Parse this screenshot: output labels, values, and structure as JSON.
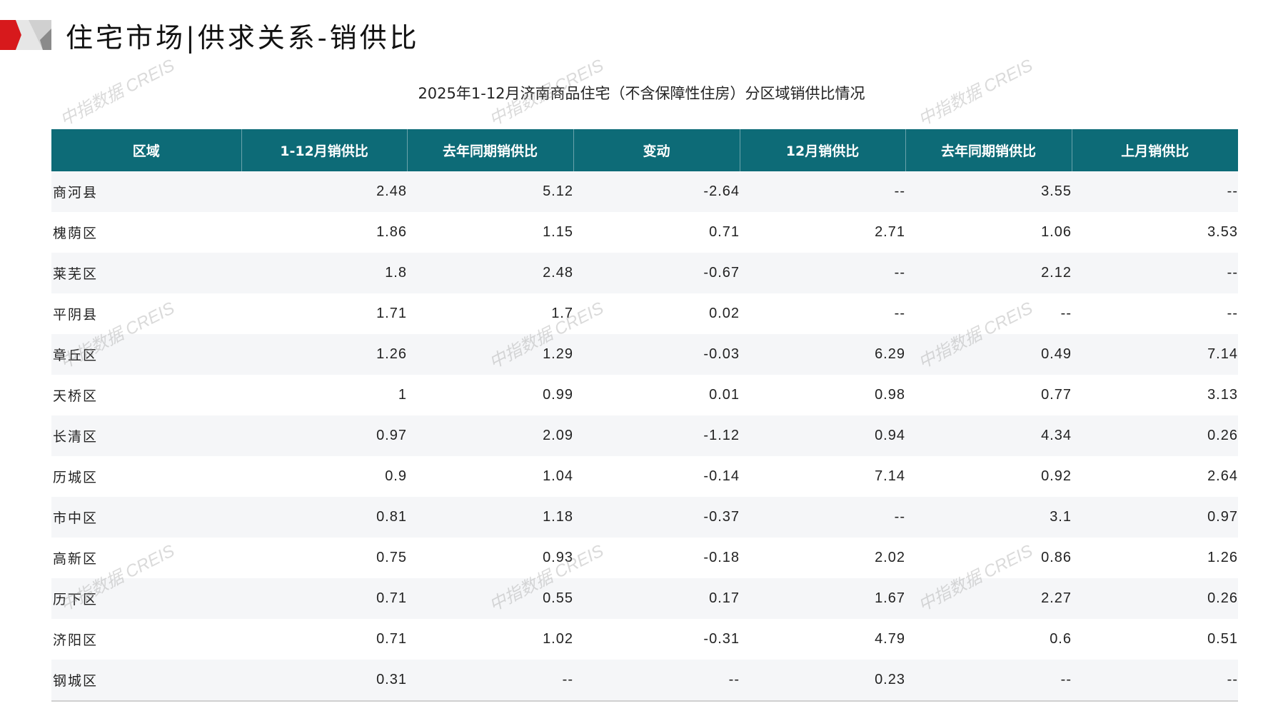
{
  "header": {
    "title": "住宅市场|供求关系-销供比",
    "subtitle": "2025年1-12月济南商品住宅（不含保障性住房）分区域销供比情况"
  },
  "watermark": "中指数据 CREIS",
  "colors": {
    "header_bg": "#0d6b77",
    "accent_red": "#d7191c",
    "row_alt": "#f5f6f8"
  },
  "table": {
    "columns": [
      "区域",
      "1-12月销供比",
      "去年同期销供比",
      "变动",
      "12月销供比",
      "去年同期销供比",
      "上月销供比"
    ],
    "rows": [
      [
        "商河县",
        "2.48",
        "5.12",
        "-2.64",
        "--",
        "3.55",
        "--"
      ],
      [
        "槐荫区",
        "1.86",
        "1.15",
        "0.71",
        "2.71",
        "1.06",
        "3.53"
      ],
      [
        "莱芜区",
        "1.8",
        "2.48",
        "-0.67",
        "--",
        "2.12",
        "--"
      ],
      [
        "平阴县",
        "1.71",
        "1.7",
        "0.02",
        "--",
        "--",
        "--"
      ],
      [
        "章丘区",
        "1.26",
        "1.29",
        "-0.03",
        "6.29",
        "0.49",
        "7.14"
      ],
      [
        "天桥区",
        "1",
        "0.99",
        "0.01",
        "0.98",
        "0.77",
        "3.13"
      ],
      [
        "长清区",
        "0.97",
        "2.09",
        "-1.12",
        "0.94",
        "4.34",
        "0.26"
      ],
      [
        "历城区",
        "0.9",
        "1.04",
        "-0.14",
        "7.14",
        "0.92",
        "2.64"
      ],
      [
        "市中区",
        "0.81",
        "1.18",
        "-0.37",
        "--",
        "3.1",
        "0.97"
      ],
      [
        "高新区",
        "0.75",
        "0.93",
        "-0.18",
        "2.02",
        "0.86",
        "1.26"
      ],
      [
        "历下区",
        "0.71",
        "0.55",
        "0.17",
        "1.67",
        "2.27",
        "0.26"
      ],
      [
        "济阳区",
        "0.71",
        "1.02",
        "-0.31",
        "4.79",
        "0.6",
        "0.51"
      ],
      [
        "钢城区",
        "0.31",
        "--",
        "--",
        "0.23",
        "--",
        "--"
      ]
    ]
  }
}
